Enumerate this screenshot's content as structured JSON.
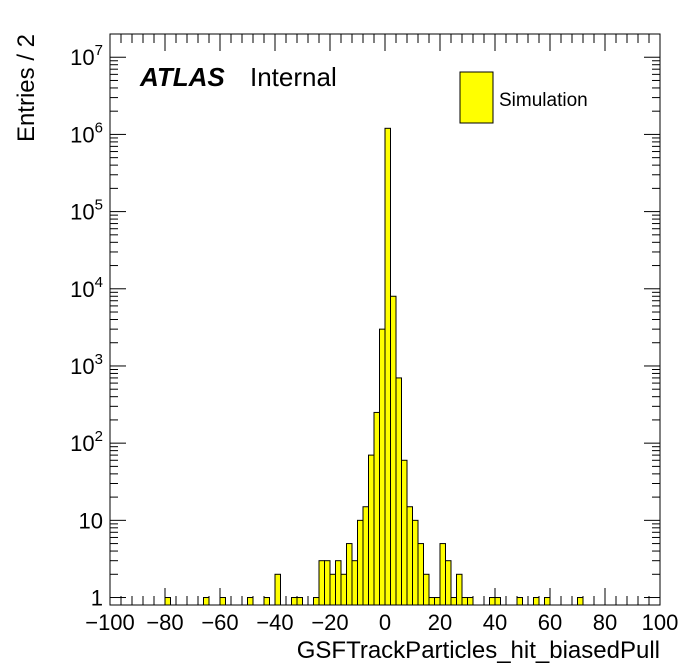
{
  "chart_data": {
    "type": "bar",
    "histogram": true,
    "bin_width": 2,
    "xlabel": "GSFTrackParticles_hit_biasedPull",
    "ylabel": "Entries / 2",
    "xlim": [
      -100,
      100
    ],
    "ylim": [
      0.8,
      20000000
    ],
    "log_y": true,
    "x_ticks": [
      "−100",
      "−80",
      "−60",
      "−40",
      "−20",
      "0",
      "20",
      "40",
      "60",
      "80",
      "100"
    ],
    "y_ticks": [
      {
        "base": "1",
        "exp": ""
      },
      {
        "base": "10",
        "exp": ""
      },
      {
        "base": "10",
        "exp": "2"
      },
      {
        "base": "10",
        "exp": "3"
      },
      {
        "base": "10",
        "exp": "4"
      },
      {
        "base": "10",
        "exp": "5"
      },
      {
        "base": "10",
        "exp": "6"
      },
      {
        "base": "10",
        "exp": "7"
      }
    ],
    "legend": {
      "placement": "top-right",
      "entries": [
        "Simulation"
      ]
    },
    "atlas_label": "ATLAS",
    "atlas_status": "Internal",
    "fill_color": "#ffff00",
    "line_color": "#000000",
    "series": [
      {
        "name": "Simulation",
        "x": [
          -80,
          -66,
          -60,
          -50,
          -44,
          -40,
          -34,
          -32,
          -26,
          -24,
          -22,
          -20,
          -18,
          -16,
          -14,
          -12,
          -10,
          -8,
          -6,
          -4,
          -2,
          0,
          2,
          4,
          6,
          8,
          10,
          12,
          14,
          16,
          18,
          20,
          22,
          24,
          26,
          28,
          30,
          38,
          40,
          48,
          54,
          58,
          70
        ],
        "values": [
          1,
          1,
          1,
          1,
          1,
          2,
          1,
          1,
          1,
          3,
          3,
          2,
          3,
          2,
          5,
          3,
          10,
          15,
          70,
          250,
          3000,
          1200000,
          8000,
          700,
          60,
          15,
          10,
          5,
          2,
          1,
          1,
          5,
          3,
          1,
          2,
          1,
          1,
          1,
          1,
          1,
          1,
          1,
          1
        ]
      }
    ]
  }
}
